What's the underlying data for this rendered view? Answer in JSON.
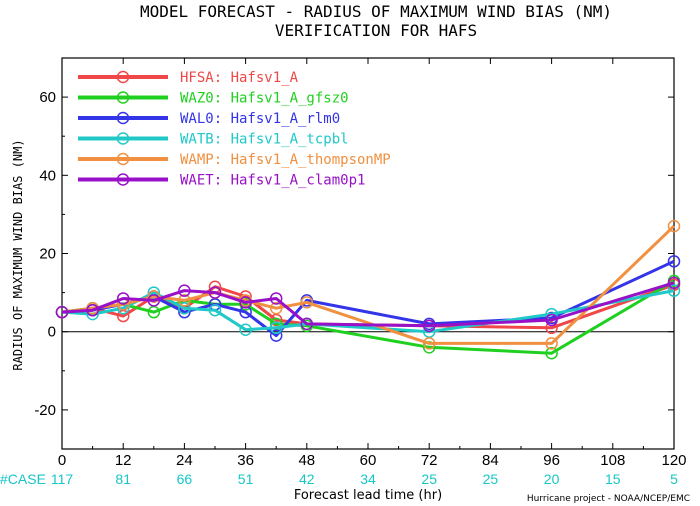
{
  "chart_data": {
    "type": "line",
    "title": "MODEL FORECAST - RADIUS OF MAXIMUM WIND BIAS (NM)",
    "subtitle": "VERIFICATION FOR HAFS",
    "xlabel": "Forecast lead time (hr)",
    "ylabel": "RADIUS OF MAXIMUM WIND BIAS (NM)",
    "xlim": [
      0,
      120
    ],
    "ylim": [
      -30,
      70
    ],
    "xticks": [
      0,
      12,
      24,
      36,
      48,
      60,
      72,
      84,
      96,
      108,
      120
    ],
    "yticks": [
      -20,
      0,
      20,
      40,
      60
    ],
    "zero_line": true,
    "legend_position": "top-left",
    "series": [
      {
        "name": "HFSA:  Hafsv1_A",
        "color": "#f04848",
        "x": [
          0,
          6,
          12,
          18,
          24,
          30,
          36,
          42,
          48,
          72,
          96,
          120
        ],
        "y": [
          5,
          6,
          4,
          9,
          6,
          11.5,
          9,
          3,
          2,
          1.5,
          1,
          12
        ]
      },
      {
        "name": "WAZ0:  Hafsv1_A_gfsz0",
        "color": "#20d020",
        "x": [
          0,
          6,
          12,
          18,
          24,
          30,
          36,
          42,
          48,
          72,
          96,
          120
        ],
        "y": [
          5,
          6,
          7,
          5,
          8,
          7,
          7,
          2,
          1.5,
          -4,
          -5.5,
          13
        ]
      },
      {
        "name": "WAL0:  Hafsv1_A_rlm0",
        "color": "#3434e8",
        "x": [
          0,
          6,
          12,
          18,
          24,
          30,
          36,
          42,
          48,
          72,
          96,
          120
        ],
        "y": [
          5,
          5.5,
          7,
          9,
          5,
          7,
          5,
          -1,
          8,
          2,
          3.5,
          18
        ]
      },
      {
        "name": "WATB:  Hafsv1_A_tcpbl",
        "color": "#20c8c8",
        "x": [
          0,
          6,
          12,
          18,
          24,
          30,
          36,
          42,
          48,
          72,
          96,
          120
        ],
        "y": [
          5,
          4.5,
          6,
          10,
          6,
          5.5,
          0.5,
          1,
          2,
          0,
          4.5,
          10.5
        ]
      },
      {
        "name": "WAMP:  Hafsv1_A_thompsonMP",
        "color": "#f09040",
        "x": [
          0,
          6,
          12,
          18,
          24,
          30,
          36,
          42,
          48,
          72,
          96,
          120
        ],
        "y": [
          5,
          6,
          7,
          9,
          8,
          10,
          8,
          6,
          7.5,
          -3,
          -3,
          27
        ]
      },
      {
        "name": "WAET:  Hafsv1_A_clam0p1",
        "color": "#9810c8",
        "x": [
          0,
          6,
          12,
          18,
          24,
          30,
          36,
          42,
          48,
          72,
          96,
          120
        ],
        "y": [
          5,
          5.5,
          8.5,
          8,
          10.5,
          10,
          7.5,
          8.5,
          2,
          1.5,
          3,
          12.5
        ]
      }
    ],
    "cases": {
      "label": "#CASE",
      "x": [
        0,
        12,
        24,
        36,
        48,
        60,
        72,
        84,
        96,
        108,
        120
      ],
      "counts": [
        "117",
        "81",
        "66",
        "51",
        "42",
        "34",
        "25",
        "25",
        "20",
        "15",
        "5"
      ]
    },
    "credit": "Hurricane project - NOAA/NCEP/EMC"
  }
}
